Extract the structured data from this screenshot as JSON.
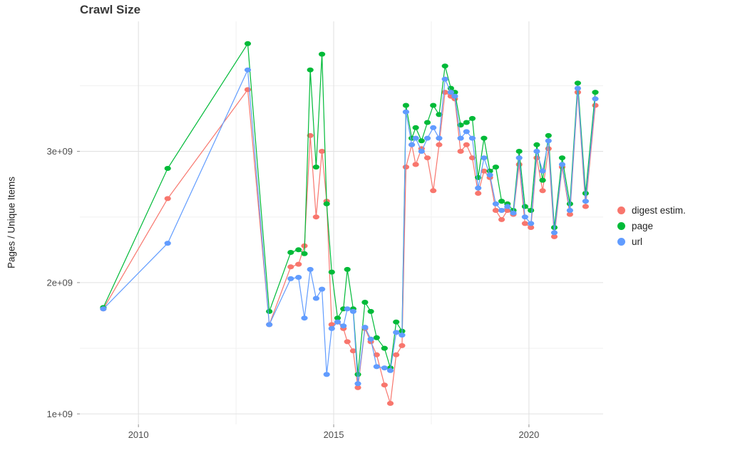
{
  "chart_data": {
    "type": "line",
    "title": "Crawl Size",
    "xlabel": "",
    "ylabel": "Pages / Unique Items",
    "y_values_unit": "1e+09 (billions of pages / unique items)",
    "grid": "on",
    "legend_position": "right",
    "xlim": [
      2008.5,
      2021.9
    ],
    "ylim": [
      0.92,
      3.99
    ],
    "x_major_ticks": [
      {
        "value": 2010,
        "label": "2010"
      },
      {
        "value": 2015,
        "label": "2015"
      },
      {
        "value": 2020,
        "label": "2020"
      }
    ],
    "x_minor_gridlines": [
      2012.5,
      2017.5
    ],
    "y_major_ticks": [
      {
        "value": 1,
        "label": "1e+09"
      },
      {
        "value": 2,
        "label": "2e+09"
      },
      {
        "value": 3,
        "label": "3e+09"
      }
    ],
    "y_minor_gridlines": [
      1.5,
      2.5,
      3.5
    ],
    "x": [
      2009.1,
      2010.75,
      2012.8,
      2013.35,
      2013.9,
      2014.1,
      2014.25,
      2014.4,
      2014.55,
      2014.7,
      2014.82,
      2014.95,
      2015.1,
      2015.25,
      2015.35,
      2015.5,
      2015.62,
      2015.8,
      2015.95,
      2016.1,
      2016.3,
      2016.45,
      2016.6,
      2016.75,
      2016.85,
      2017.0,
      2017.1,
      2017.25,
      2017.4,
      2017.55,
      2017.7,
      2017.85,
      2018.0,
      2018.1,
      2018.25,
      2018.4,
      2018.55,
      2018.7,
      2018.85,
      2019.0,
      2019.15,
      2019.3,
      2019.45,
      2019.6,
      2019.75,
      2019.9,
      2020.05,
      2020.2,
      2020.35,
      2020.5,
      2020.65,
      2020.85,
      2021.05,
      2021.25,
      2021.45,
      2021.7
    ],
    "series": [
      {
        "name": "digest estim.",
        "color": "#F8766D",
        "values": [
          1.8,
          2.64,
          3.47,
          1.68,
          2.12,
          2.14,
          2.28,
          3.12,
          2.5,
          3.0,
          2.62,
          1.68,
          1.7,
          1.65,
          1.55,
          1.48,
          1.2,
          1.65,
          1.55,
          1.45,
          1.22,
          1.08,
          1.45,
          1.52,
          2.88,
          3.05,
          2.9,
          3.02,
          2.95,
          2.7,
          3.05,
          3.45,
          3.42,
          3.4,
          3.0,
          3.05,
          2.95,
          2.68,
          2.85,
          2.8,
          2.55,
          2.48,
          2.55,
          2.52,
          2.9,
          2.45,
          2.42,
          2.95,
          2.7,
          3.02,
          2.35,
          2.88,
          2.52,
          3.45,
          2.58,
          3.35
        ]
      },
      {
        "name": "page",
        "color": "#00BA38",
        "values": [
          1.81,
          2.87,
          3.82,
          1.78,
          2.23,
          2.25,
          2.22,
          3.62,
          2.88,
          3.74,
          2.6,
          2.08,
          1.73,
          1.8,
          2.1,
          1.8,
          1.3,
          1.85,
          1.78,
          1.58,
          1.5,
          1.35,
          1.7,
          1.63,
          3.35,
          3.1,
          3.18,
          3.08,
          3.22,
          3.35,
          3.28,
          3.65,
          3.48,
          3.45,
          3.2,
          3.22,
          3.25,
          2.8,
          3.1,
          2.85,
          2.88,
          2.62,
          2.6,
          2.55,
          3.0,
          2.58,
          2.55,
          3.05,
          2.78,
          3.12,
          2.42,
          2.95,
          2.6,
          3.52,
          2.68,
          3.45
        ]
      },
      {
        "name": "url",
        "color": "#619CFF",
        "values": [
          1.8,
          2.3,
          3.62,
          1.68,
          2.03,
          2.04,
          1.73,
          2.1,
          1.88,
          1.95,
          1.3,
          1.65,
          1.7,
          1.67,
          1.8,
          1.78,
          1.23,
          1.66,
          1.57,
          1.36,
          1.35,
          1.33,
          1.62,
          1.6,
          3.3,
          3.05,
          3.1,
          3.0,
          3.1,
          3.18,
          3.1,
          3.55,
          3.45,
          3.42,
          3.1,
          3.15,
          3.1,
          2.72,
          2.95,
          2.82,
          2.6,
          2.55,
          2.58,
          2.53,
          2.95,
          2.5,
          2.45,
          3.0,
          2.85,
          3.08,
          2.38,
          2.9,
          2.55,
          3.48,
          2.62,
          3.4
        ]
      }
    ]
  },
  "colors": {
    "background": "#ffffff",
    "grid_major": "#e2e2e2",
    "grid_minor": "#f0f0f0",
    "tick_text": "#4d4d4d",
    "title_text": "#383838"
  }
}
